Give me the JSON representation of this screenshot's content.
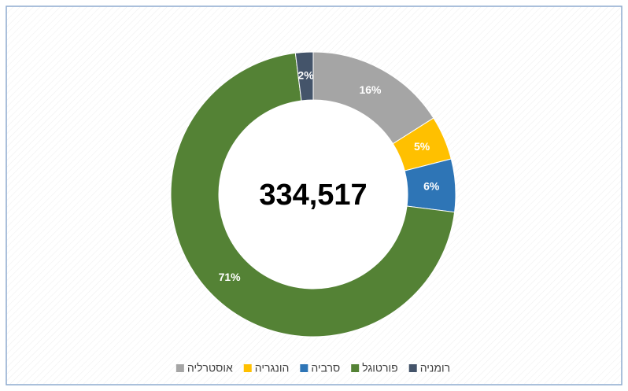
{
  "chart_data": {
    "type": "donut",
    "center_text": "334,517",
    "categories": [
      "אוסטרליה",
      "הונגריה",
      "סרביה",
      "פורטוגל",
      "רומניה"
    ],
    "values": [
      16,
      5,
      6,
      71,
      2
    ],
    "value_labels": [
      "16%",
      "5%",
      "6%",
      "71%",
      "2%"
    ],
    "colors": [
      "#a5a5a5",
      "#ffc000",
      "#2e75b6",
      "#548235",
      "#44546a"
    ],
    "legend": "bottom"
  }
}
